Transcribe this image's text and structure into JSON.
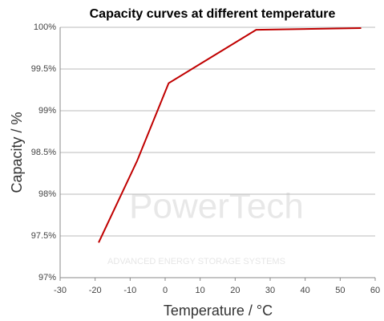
{
  "chart_data": {
    "type": "line",
    "title": "Capacity curves at different temperature",
    "x_label": "Temperature / °C",
    "y_label": "Capacity / %",
    "watermark": "PowerTech",
    "watermark_subtitle": "ADVANCED ENERGY STORAGE SYSTEMS",
    "x": [
      -19,
      -8,
      1,
      26,
      56
    ],
    "series": [
      {
        "name": "Capacity",
        "color": "#c00000",
        "values": [
          97.42,
          98.4,
          99.33,
          99.97,
          99.99
        ]
      }
    ],
    "xlim": [
      -30,
      60
    ],
    "xticks": [
      -30,
      -20,
      -10,
      0,
      10,
      20,
      30,
      40,
      50,
      60
    ],
    "ylim": [
      97,
      100
    ],
    "yticks": [
      {
        "value": 97,
        "label": "97%"
      },
      {
        "value": 97.5,
        "label": "97.5%"
      },
      {
        "value": 98,
        "label": "98%"
      },
      {
        "value": 98.5,
        "label": "98.5%"
      },
      {
        "value": 99,
        "label": "99%"
      },
      {
        "value": 99.5,
        "label": "99.5%"
      },
      {
        "value": 100,
        "label": "100%"
      }
    ],
    "grid": true
  }
}
